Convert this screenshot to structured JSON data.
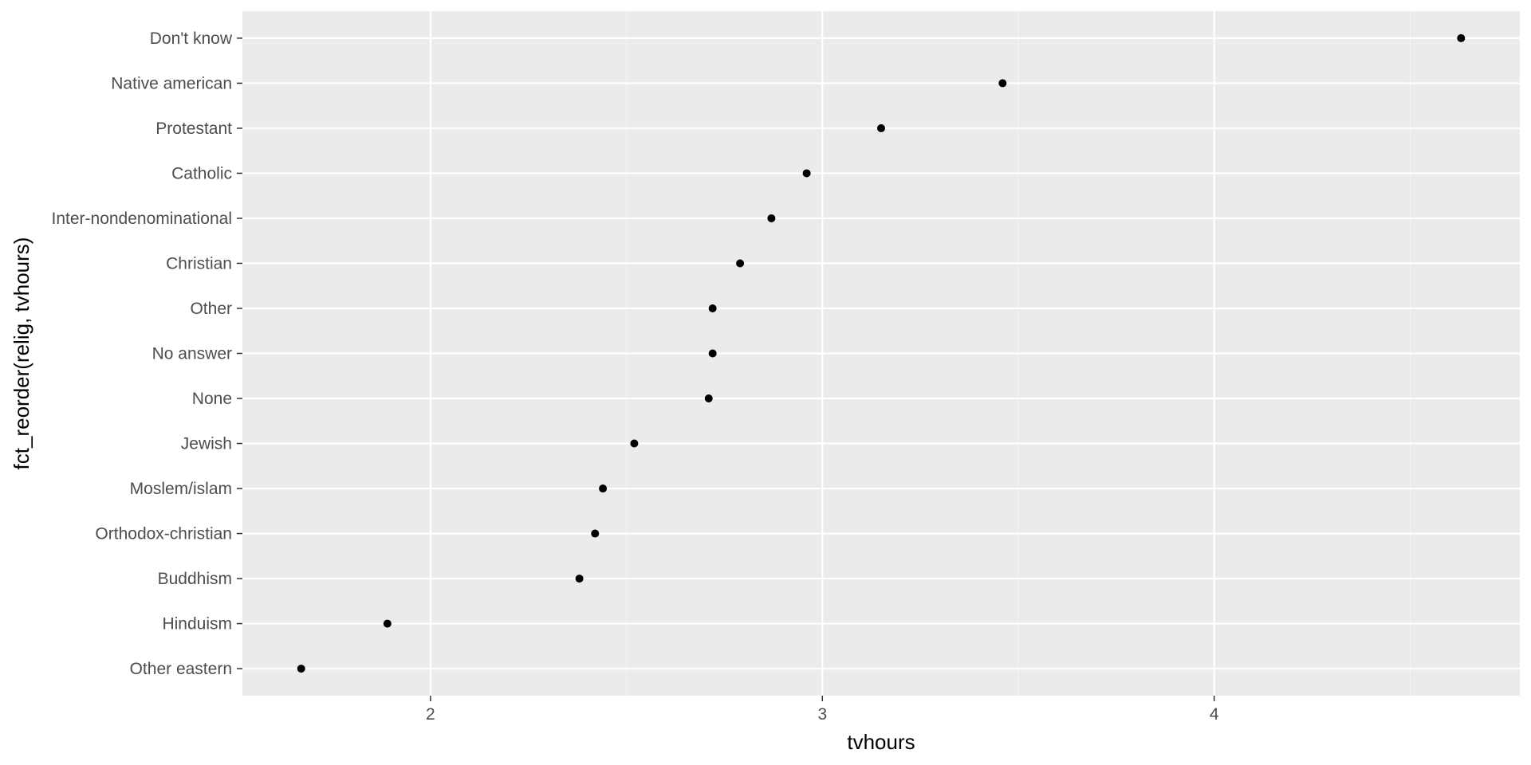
{
  "chart_data": {
    "type": "scatter",
    "title": "",
    "xlabel": "tvhours",
    "ylabel": "fct_reorder(relig, tvhours)",
    "xlim": [
      1.52,
      4.78
    ],
    "x_ticks": [
      2,
      3,
      4
    ],
    "x_tick_labels": [
      "2",
      "3",
      "4"
    ],
    "x_minor_ticks": [
      2.5,
      3.5,
      4.5
    ],
    "grid": true,
    "legend": "none",
    "categories": [
      "Don't know",
      "Native american",
      "Protestant",
      "Catholic",
      "Inter-nondenominational",
      "Christian",
      "Other",
      "No answer",
      "None",
      "Jewish",
      "Moslem/islam",
      "Orthodox-christian",
      "Buddhism",
      "Hinduism",
      "Other eastern"
    ],
    "values": [
      4.63,
      3.46,
      3.15,
      2.96,
      2.87,
      2.79,
      2.72,
      2.72,
      2.71,
      2.52,
      2.44,
      2.42,
      2.38,
      1.89,
      1.67
    ],
    "colors": {
      "panel_background": "#ebebeb",
      "grid_major": "#ffffff",
      "grid_minor": "#f5f5f5",
      "point": "#000000",
      "tick_text": "#4d4d4d",
      "axis_title": "#000000"
    }
  }
}
